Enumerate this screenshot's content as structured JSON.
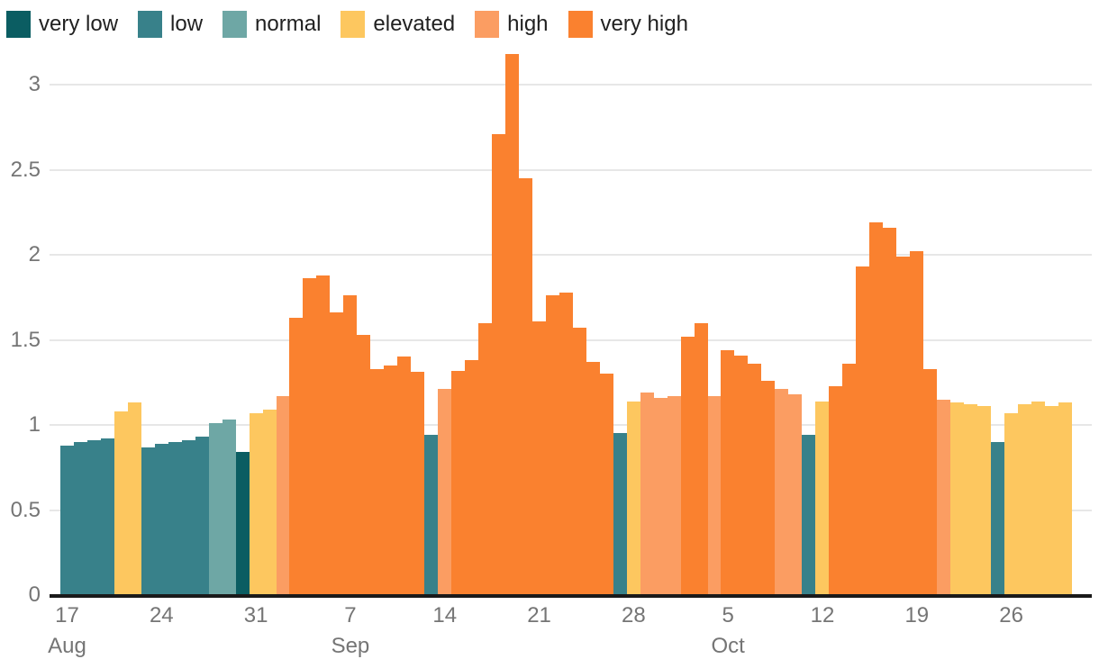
{
  "legend": {
    "items": [
      {
        "label": "very low",
        "color": "#0b5d62"
      },
      {
        "label": "low",
        "color": "#38818a"
      },
      {
        "label": "normal",
        "color": "#6ea7a5"
      },
      {
        "label": "elevated",
        "color": "#fdc75f"
      },
      {
        "label": "high",
        "color": "#fb9d62"
      },
      {
        "label": "very high",
        "color": "#fa812f"
      }
    ]
  },
  "axes": {
    "y_ticks": [
      "0",
      "0.5",
      "1",
      "1.5",
      "2",
      "2.5",
      "3"
    ],
    "x_ticks": [
      {
        "day": "17",
        "month": "Aug",
        "index": 0
      },
      {
        "day": "24",
        "index": 7
      },
      {
        "day": "31",
        "index": 14
      },
      {
        "day": "7",
        "month": "Sep",
        "index": 21
      },
      {
        "day": "14",
        "index": 28
      },
      {
        "day": "21",
        "index": 35
      },
      {
        "day": "28",
        "index": 42
      },
      {
        "day": "5",
        "month": "Oct",
        "index": 49
      },
      {
        "day": "12",
        "index": 56
      },
      {
        "day": "19",
        "index": 63
      },
      {
        "day": "26",
        "index": 70
      }
    ]
  },
  "chart_data": {
    "type": "bar",
    "title": "",
    "xlabel": "",
    "ylabel": "",
    "ylim": [
      0,
      3.2
    ],
    "grid": "horizontal",
    "legend_position": "top-left",
    "x_range": [
      "Aug 17",
      "Oct 30"
    ],
    "level_colors": {
      "very low": "#0b5d62",
      "low": "#38818a",
      "normal": "#6ea7a5",
      "elevated": "#fdc75f",
      "high": "#fb9d62",
      "very high": "#fa812f"
    },
    "bars": [
      {
        "date": "Aug 17",
        "value": 0.88,
        "level": "low"
      },
      {
        "date": "Aug 18",
        "value": 0.9,
        "level": "low"
      },
      {
        "date": "Aug 19",
        "value": 0.91,
        "level": "low"
      },
      {
        "date": "Aug 20",
        "value": 0.92,
        "level": "low"
      },
      {
        "date": "Aug 21",
        "value": 1.08,
        "level": "elevated"
      },
      {
        "date": "Aug 22",
        "value": 1.13,
        "level": "elevated"
      },
      {
        "date": "Aug 23",
        "value": 0.87,
        "level": "low"
      },
      {
        "date": "Aug 24",
        "value": 0.89,
        "level": "low"
      },
      {
        "date": "Aug 25",
        "value": 0.9,
        "level": "low"
      },
      {
        "date": "Aug 26",
        "value": 0.91,
        "level": "low"
      },
      {
        "date": "Aug 27",
        "value": 0.93,
        "level": "low"
      },
      {
        "date": "Aug 28",
        "value": 1.01,
        "level": "normal"
      },
      {
        "date": "Aug 29",
        "value": 1.03,
        "level": "normal"
      },
      {
        "date": "Aug 30",
        "value": 0.84,
        "level": "very low"
      },
      {
        "date": "Aug 31",
        "value": 1.07,
        "level": "elevated"
      },
      {
        "date": "Sep 1",
        "value": 1.09,
        "level": "elevated"
      },
      {
        "date": "Sep 2",
        "value": 1.17,
        "level": "high"
      },
      {
        "date": "Sep 3",
        "value": 1.63,
        "level": "very high"
      },
      {
        "date": "Sep 4",
        "value": 1.86,
        "level": "very high"
      },
      {
        "date": "Sep 5",
        "value": 1.88,
        "level": "very high"
      },
      {
        "date": "Sep 6",
        "value": 1.66,
        "level": "very high"
      },
      {
        "date": "Sep 7",
        "value": 1.76,
        "level": "very high"
      },
      {
        "date": "Sep 8",
        "value": 1.53,
        "level": "very high"
      },
      {
        "date": "Sep 9",
        "value": 1.33,
        "level": "very high"
      },
      {
        "date": "Sep 10",
        "value": 1.35,
        "level": "very high"
      },
      {
        "date": "Sep 11",
        "value": 1.4,
        "level": "very high"
      },
      {
        "date": "Sep 12",
        "value": 1.31,
        "level": "very high"
      },
      {
        "date": "Sep 13",
        "value": 0.94,
        "level": "low"
      },
      {
        "date": "Sep 14",
        "value": 1.21,
        "level": "high"
      },
      {
        "date": "Sep 15",
        "value": 1.32,
        "level": "very high"
      },
      {
        "date": "Sep 16",
        "value": 1.38,
        "level": "very high"
      },
      {
        "date": "Sep 17",
        "value": 1.6,
        "level": "very high"
      },
      {
        "date": "Sep 18",
        "value": 2.71,
        "level": "very high"
      },
      {
        "date": "Sep 19",
        "value": 3.18,
        "level": "very high"
      },
      {
        "date": "Sep 20",
        "value": 2.45,
        "level": "very high"
      },
      {
        "date": "Sep 21",
        "value": 1.61,
        "level": "very high"
      },
      {
        "date": "Sep 22",
        "value": 1.76,
        "level": "very high"
      },
      {
        "date": "Sep 23",
        "value": 1.78,
        "level": "very high"
      },
      {
        "date": "Sep 24",
        "value": 1.57,
        "level": "very high"
      },
      {
        "date": "Sep 25",
        "value": 1.37,
        "level": "very high"
      },
      {
        "date": "Sep 26",
        "value": 1.3,
        "level": "very high"
      },
      {
        "date": "Sep 27",
        "value": 0.95,
        "level": "low"
      },
      {
        "date": "Sep 28",
        "value": 1.14,
        "level": "elevated"
      },
      {
        "date": "Sep 29",
        "value": 1.19,
        "level": "high"
      },
      {
        "date": "Sep 30",
        "value": 1.16,
        "level": "high"
      },
      {
        "date": "Oct 1",
        "value": 1.17,
        "level": "high"
      },
      {
        "date": "Oct 2",
        "value": 1.52,
        "level": "very high"
      },
      {
        "date": "Oct 3",
        "value": 1.6,
        "level": "very high"
      },
      {
        "date": "Oct 4",
        "value": 1.17,
        "level": "high"
      },
      {
        "date": "Oct 5",
        "value": 1.44,
        "level": "very high"
      },
      {
        "date": "Oct 6",
        "value": 1.41,
        "level": "very high"
      },
      {
        "date": "Oct 7",
        "value": 1.36,
        "level": "very high"
      },
      {
        "date": "Oct 8",
        "value": 1.26,
        "level": "very high"
      },
      {
        "date": "Oct 9",
        "value": 1.21,
        "level": "high"
      },
      {
        "date": "Oct 10",
        "value": 1.18,
        "level": "high"
      },
      {
        "date": "Oct 11",
        "value": 0.94,
        "level": "low"
      },
      {
        "date": "Oct 12",
        "value": 1.14,
        "level": "elevated"
      },
      {
        "date": "Oct 13",
        "value": 1.23,
        "level": "very high"
      },
      {
        "date": "Oct 14",
        "value": 1.36,
        "level": "very high"
      },
      {
        "date": "Oct 15",
        "value": 1.93,
        "level": "very high"
      },
      {
        "date": "Oct 16",
        "value": 2.19,
        "level": "very high"
      },
      {
        "date": "Oct 17",
        "value": 2.16,
        "level": "very high"
      },
      {
        "date": "Oct 18",
        "value": 1.99,
        "level": "very high"
      },
      {
        "date": "Oct 19",
        "value": 2.02,
        "level": "very high"
      },
      {
        "date": "Oct 20",
        "value": 1.33,
        "level": "very high"
      },
      {
        "date": "Oct 21",
        "value": 1.15,
        "level": "high"
      },
      {
        "date": "Oct 22",
        "value": 1.13,
        "level": "elevated"
      },
      {
        "date": "Oct 23",
        "value": 1.12,
        "level": "elevated"
      },
      {
        "date": "Oct 24",
        "value": 1.11,
        "level": "elevated"
      },
      {
        "date": "Oct 25",
        "value": 0.9,
        "level": "low"
      },
      {
        "date": "Oct 26",
        "value": 1.07,
        "level": "elevated"
      },
      {
        "date": "Oct 27",
        "value": 1.12,
        "level": "elevated"
      },
      {
        "date": "Oct 28",
        "value": 1.14,
        "level": "elevated"
      },
      {
        "date": "Oct 29",
        "value": 1.11,
        "level": "elevated"
      },
      {
        "date": "Oct 30",
        "value": 1.13,
        "level": "elevated"
      }
    ]
  }
}
